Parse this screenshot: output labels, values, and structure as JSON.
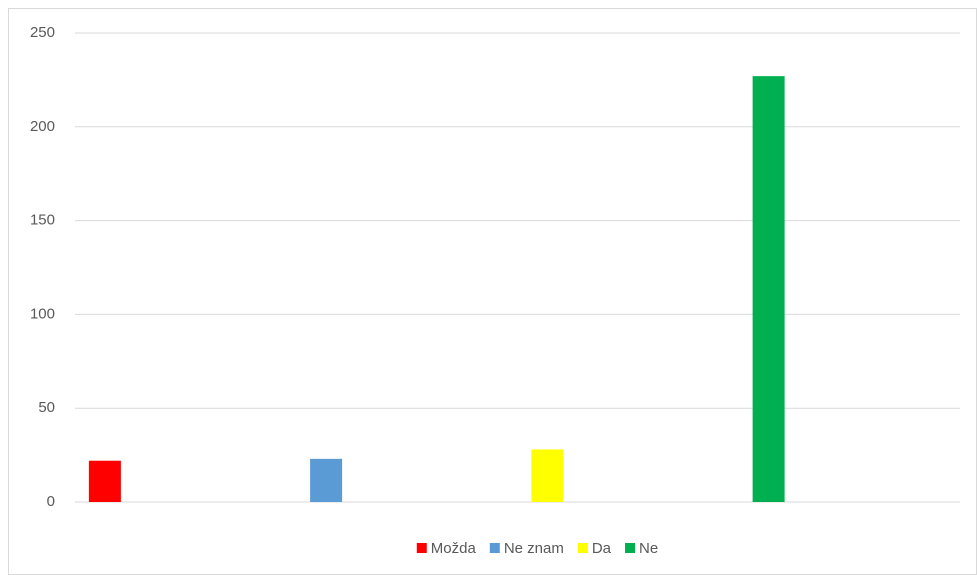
{
  "chart_data": {
    "type": "bar",
    "series": [
      {
        "name": "Možda",
        "color": "#ff0000",
        "values": [
          22
        ]
      },
      {
        "name": "Ne znam",
        "color": "#5b9bd5",
        "values": [
          23
        ]
      },
      {
        "name": "Da",
        "color": "#ffff00",
        "values": [
          28
        ]
      },
      {
        "name": "Ne",
        "color": "#00b050",
        "values": [
          227
        ]
      }
    ],
    "ylim": [
      0,
      250
    ],
    "yticks": [
      0,
      50,
      100,
      150,
      200,
      250
    ],
    "grid": true,
    "legend": "bottom"
  }
}
